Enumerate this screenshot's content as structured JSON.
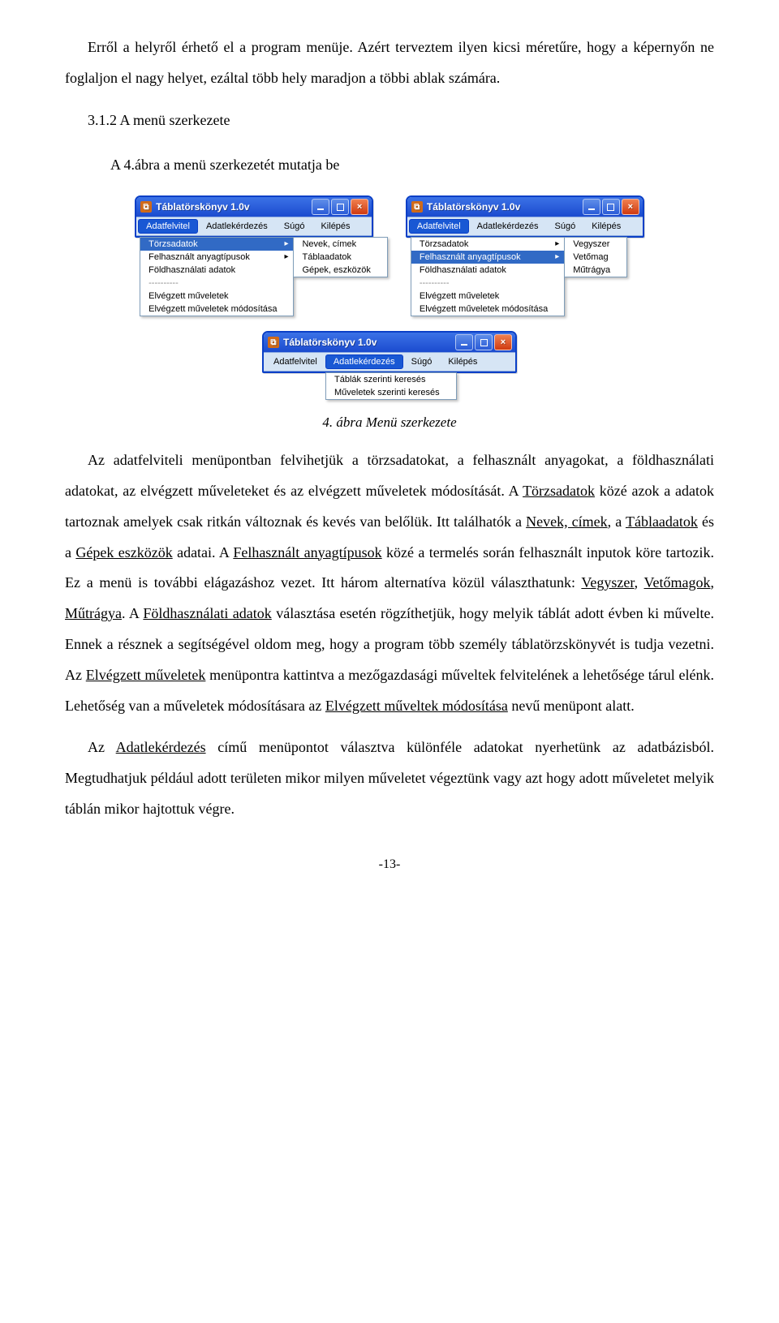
{
  "colors": {
    "xp_blue_top": "#3b72e6",
    "xp_blue_bottom": "#1b4bcf",
    "xp_border": "#0a3fc7",
    "menubar_bg": "#d6e5f5",
    "menubar_border": "#8caae0",
    "client_bg": "#ece9d8",
    "dd_sel_bg": "#316ac5",
    "mi_active_bg": "#1958d4",
    "mi_active_border": "#0a3fc7"
  },
  "text": {
    "p1": "Erről a helyről érhető el a program menüje. Azért terveztem ilyen kicsi méretűre, hogy a képernyőn ne foglaljon el nagy helyet, ezáltal több hely maradjon a többi ablak számára.",
    "h1": "3.1.2 A menü szerkezete",
    "sub1": "A 4.ábra a menü szerkezetét mutatja be",
    "caption": "4. ábra Menü szerkezete",
    "page": "-13-"
  },
  "body_segments": [
    {
      "t": "plain",
      "v": "Az adatfelviteli menüpontban felvihetjük a törzsadatokat, a felhasznált anyagokat, a földhasználati adatokat, az elvégzett műveleteket és az elvégzett műveletek módosítását. A "
    },
    {
      "t": "u",
      "v": "Törzsadatok"
    },
    {
      "t": "plain",
      "v": " közé azok a adatok tartoznak amelyek csak ritkán változnak és kevés van belőlük. Itt találhatók a "
    },
    {
      "t": "u",
      "v": "Nevek, címek"
    },
    {
      "t": "plain",
      "v": ", a "
    },
    {
      "t": "u",
      "v": "Táblaadatok"
    },
    {
      "t": "plain",
      "v": " és a "
    },
    {
      "t": "u",
      "v": "Gépek eszközök"
    },
    {
      "t": "plain",
      "v": " adatai. A "
    },
    {
      "t": "u",
      "v": "Felhasznált anyagtípusok"
    },
    {
      "t": "plain",
      "v": " közé a termelés során felhasznált inputok köre tartozik. Ez a menü is további elágazáshoz vezet. Itt három alternatíva közül választhatunk: "
    },
    {
      "t": "u",
      "v": "Vegyszer"
    },
    {
      "t": "plain",
      "v": ", "
    },
    {
      "t": "u",
      "v": "Vetőmagok"
    },
    {
      "t": "plain",
      "v": ", "
    },
    {
      "t": "u",
      "v": "Műtrágya"
    },
    {
      "t": "plain",
      "v": ". A "
    },
    {
      "t": "u",
      "v": "Földhasználati adatok"
    },
    {
      "t": "plain",
      "v": " választása esetén rögzíthetjük, hogy melyik táblát adott évben ki művelte. Ennek a résznek a segítségével oldom meg, hogy a program több személy táblatörzskönyvét is tudja vezetni. Az "
    },
    {
      "t": "u",
      "v": "Elvégzett műveletek"
    },
    {
      "t": "plain",
      "v": " menüpontra kattintva a mezőgazdasági műveltek felvitelének a lehetősége tárul elénk. Lehetőség van a műveletek módosításara az "
    },
    {
      "t": "u",
      "v": "Elvégzett műveltek módosítása"
    },
    {
      "t": "plain",
      "v": " nevű menüpont alatt."
    }
  ],
  "p3_segments": [
    {
      "t": "plain",
      "v": "Az "
    },
    {
      "t": "u",
      "v": "Adatlekérdezés"
    },
    {
      "t": "plain",
      "v": " című menüpontot választva különféle adatokat nyerhetünk az adatbázisból. Megtudhatjuk például adott területen mikor milyen műveletet végeztünk vagy azt hogy adott műveletet melyik táblán mikor hajtottuk végre."
    }
  ],
  "windows": {
    "title": "Táblatörskönyv 1.0v",
    "menus": [
      "Adatfelvitel",
      "Adatlekérdezés",
      "Súgó",
      "Kilépés"
    ],
    "w1": {
      "active": 0,
      "dd1": {
        "items": [
          "Törzsadatok",
          "Felhasznált anyagtípusok",
          "Földhasználati adatok",
          "----------",
          "Elvégzett műveletek",
          "Elvégzett műveletek módosítása"
        ],
        "arrows": [
          0,
          1
        ],
        "sel": 0,
        "sep_text": "----------"
      },
      "dd2": {
        "items": [
          "Nevek, címek",
          "Táblaadatok",
          "Gépek, eszközök"
        ]
      }
    },
    "w2": {
      "active": 0,
      "dd1": {
        "items": [
          "Törzsadatok",
          "Felhasznált anyagtípusok",
          "Földhasználati adatok",
          "----------",
          "Elvégzett műveletek",
          "Elvégzett műveletek módosítása"
        ],
        "arrows": [
          0,
          1
        ],
        "sel": 1
      },
      "dd2": {
        "items": [
          "Vegyszer",
          "Vetőmag",
          "Műtrágya"
        ]
      }
    },
    "w3": {
      "active": 1,
      "dd1": {
        "items": [
          "Táblák szerinti keresés",
          "Műveletek szerinti keresés"
        ]
      }
    }
  }
}
